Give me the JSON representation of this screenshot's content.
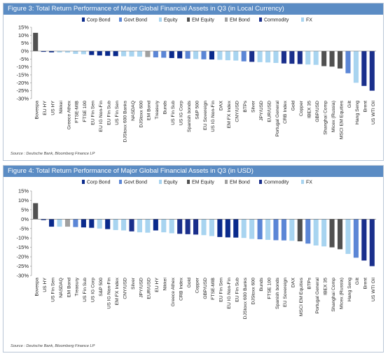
{
  "chart_data": [
    {
      "type": "bar",
      "title": "Figure 3: Total Return Performance of Major Global Financial Assets in Q3 (in Local Currency)",
      "source": "Source : Deutsche Bank, Bloomberg Finance LP",
      "ylim": [
        -30,
        15
      ],
      "yticks": [
        "15%",
        "10%",
        "5%",
        "0%",
        "-5%",
        "-10%",
        "-15%",
        "-20%",
        "-25%",
        "-30%"
      ],
      "grid": false,
      "legend_position": "top",
      "legend": [
        {
          "name": "Corp Bond",
          "color": "#0a2a8c"
        },
        {
          "name": "Govt Bond",
          "color": "#5b86d6"
        },
        {
          "name": "Equity",
          "color": "#a8d4f0"
        },
        {
          "name": "EM Equity",
          "color": "#505050"
        },
        {
          "name": "EM Bond",
          "color": "#a0a0a0"
        },
        {
          "name": "Commodity",
          "color": "#1a2f8c"
        },
        {
          "name": "FX",
          "color": "#a8d4f0"
        }
      ],
      "categories": [
        "Bovespa",
        "EU HY",
        "US HY",
        "Nikkei",
        "Greece Athex",
        "FTSE-MIB",
        "FTSE 100",
        "EU Fin Sen",
        "EU IG Non-Fin",
        "EU Fin Sub",
        "US Fin Sen",
        "DJStoxx 600 Banks",
        "NASDAQ",
        "DJStoxx 600",
        "EM Bond",
        "Treasury",
        "Bunds",
        "US Fin Sub",
        "US IG Corp",
        "Spanish bonds",
        "S&P 500",
        "EU Sovereign",
        "US IG Non-Fin",
        "DAX",
        "EM FX Index",
        "CNY/USD",
        "BTPs",
        "Silver",
        "JPY/USD",
        "EUR/USD",
        "Portugal General",
        "CRB Index",
        "Gold",
        "Copper",
        "IBEX 35",
        "GBP/USD",
        "Shanghai Comp",
        "Micex (Russia)",
        "MSCI EM Equities",
        "Gilt",
        "Hang Seng",
        "Brent",
        "US WTI Oil"
      ],
      "values": [
        11.5,
        -0.5,
        -0.8,
        -0.9,
        -1.0,
        -1.8,
        -2.0,
        -2.5,
        -2.8,
        -3.0,
        -3.2,
        -3.3,
        -3.4,
        -3.5,
        -3.8,
        -4.0,
        -4.2,
        -4.4,
        -4.6,
        -4.8,
        -5.0,
        -5.2,
        -5.3,
        -5.5,
        -5.8,
        -6.0,
        -6.5,
        -6.8,
        -7.0,
        -7.2,
        -7.5,
        -7.8,
        -8.0,
        -8.2,
        -8.5,
        -8.7,
        -9.5,
        -9.8,
        -11.0,
        -14.0,
        -20.0,
        -22.0,
        -25.0
      ],
      "groups": [
        "EM Equity",
        "Corp Bond",
        "Corp Bond",
        "Equity",
        "Equity",
        "Equity",
        "Equity",
        "Corp Bond",
        "Corp Bond",
        "Corp Bond",
        "Corp Bond",
        "Equity",
        "Equity",
        "Equity",
        "EM Bond",
        "Govt Bond",
        "Govt Bond",
        "Corp Bond",
        "Corp Bond",
        "Govt Bond",
        "Equity",
        "Govt Bond",
        "Corp Bond",
        "Equity",
        "FX",
        "FX",
        "Govt Bond",
        "Commodity",
        "FX",
        "FX",
        "Equity",
        "Commodity",
        "Commodity",
        "Commodity",
        "Equity",
        "FX",
        "EM Equity",
        "EM Equity",
        "EM Equity",
        "Govt Bond",
        "Equity",
        "Commodity",
        "Commodity"
      ]
    },
    {
      "type": "bar",
      "title": "Figure 4: Total Return Performance of Major Global Financial Assets in Q3 (in USD)",
      "source": "Source : Deutsche Bank, Bloomberg Finance LP",
      "ylim": [
        -30,
        15
      ],
      "yticks": [
        "15%",
        "10%",
        "5%",
        "0%",
        "-5%",
        "-10%",
        "-15%",
        "-20%",
        "-25%",
        "-30%"
      ],
      "grid": false,
      "legend_position": "top",
      "legend": [
        {
          "name": "Corp Bond",
          "color": "#0a2a8c"
        },
        {
          "name": "Govt Bond",
          "color": "#5b86d6"
        },
        {
          "name": "Equity",
          "color": "#a8d4f0"
        },
        {
          "name": "EM Equity",
          "color": "#505050"
        },
        {
          "name": "EM Bond",
          "color": "#a0a0a0"
        },
        {
          "name": "Commodity",
          "color": "#1a2f8c"
        },
        {
          "name": "FX",
          "color": "#a8d4f0"
        }
      ],
      "categories": [
        "Bovespa",
        "US HY",
        "US Fin Sen",
        "NASDAQ",
        "EM Bond",
        "Treasury",
        "US Fin Sub",
        "US IG Corp",
        "S&P 500",
        "US IG Non-Fin",
        "EM FX Index",
        "CNY/USD",
        "Silver",
        "JPY/USD",
        "EUR/USD",
        "EU HY",
        "Nikkei",
        "Greece Athex",
        "CRB Index",
        "Gold",
        "Copper",
        "GBP/USD",
        "FTSE-MIB",
        "EU Fin Sen",
        "EU IG Non-Fin",
        "EU Fin Sub",
        "DJStoxx 600 Banks",
        "DJStoxx 600",
        "Bunds",
        "FTSE 100",
        "Spanish bonds",
        "EU Sovereign",
        "DAX",
        "MSCI EM Equities",
        "BTPs",
        "Portugal General",
        "IBEX 35",
        "Shanghai Comp",
        "Micex (Russia)",
        "Hang Seng",
        "Gilt",
        "Brent",
        "US WTI Oil"
      ],
      "values": [
        8.5,
        -0.5,
        -4.0,
        -4.0,
        -4.0,
        -4.2,
        -4.4,
        -4.6,
        -5.0,
        -5.3,
        -5.8,
        -6.0,
        -6.5,
        -7.0,
        -7.2,
        -6.0,
        -7.0,
        -7.5,
        -7.8,
        -8.0,
        -8.2,
        -8.5,
        -9.0,
        -9.5,
        -9.7,
        -9.8,
        -10.0,
        -10.5,
        -10.7,
        -11.0,
        -11.2,
        -11.3,
        -11.5,
        -11.8,
        -13.0,
        -14.0,
        -14.5,
        -15.0,
        -16.0,
        -18.5,
        -20.5,
        -22.0,
        -25.0
      ],
      "groups": [
        "EM Equity",
        "Corp Bond",
        "Corp Bond",
        "Equity",
        "EM Bond",
        "Govt Bond",
        "Corp Bond",
        "Corp Bond",
        "Equity",
        "Corp Bond",
        "FX",
        "FX",
        "Commodity",
        "FX",
        "FX",
        "Corp Bond",
        "Equity",
        "Equity",
        "Commodity",
        "Commodity",
        "Commodity",
        "FX",
        "Equity",
        "Corp Bond",
        "Corp Bond",
        "Corp Bond",
        "Equity",
        "Equity",
        "Govt Bond",
        "Equity",
        "Govt Bond",
        "Govt Bond",
        "Equity",
        "EM Equity",
        "Govt Bond",
        "Equity",
        "Equity",
        "EM Equity",
        "EM Equity",
        "Equity",
        "Govt Bond",
        "Commodity",
        "Commodity"
      ]
    }
  ]
}
